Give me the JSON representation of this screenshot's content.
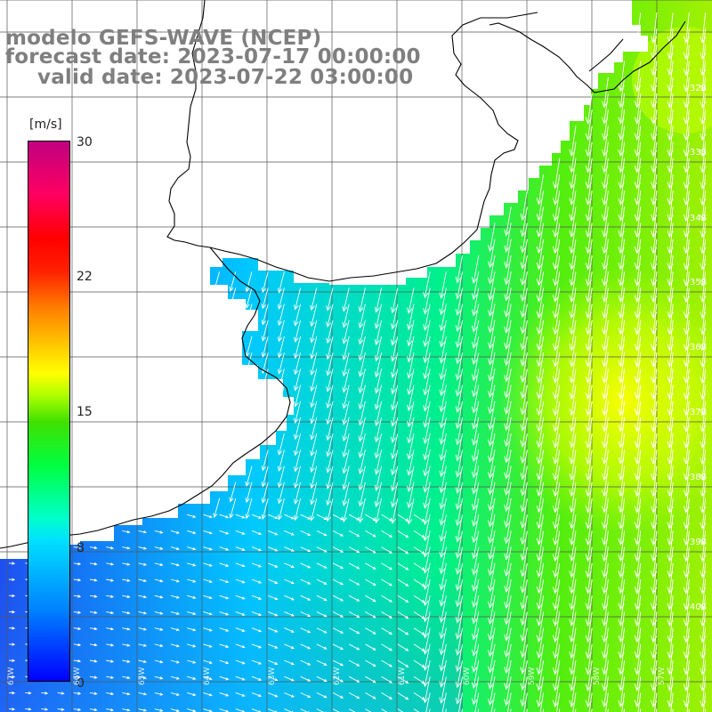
{
  "title": {
    "line1": "modelo GEFS-WAVE (NCEP)",
    "line2": "forecast date: 2023-07-17 00:00:00",
    "line3": "valid date: 2023-07-22 03:00:00"
  },
  "colorbar": {
    "unit": "[m/s]",
    "ticks": [
      "30",
      "22",
      "15",
      "8",
      "0"
    ],
    "colors": [
      "#0000ff",
      "#0080ff",
      "#00ffff",
      "#00ff40",
      "#b0ff00",
      "#ffff00",
      "#ff8000",
      "#ff0000",
      "#c00080"
    ]
  },
  "axes": {
    "lat_labels": [
      "32S",
      "33S",
      "34S",
      "35S",
      "36S",
      "37S",
      "38S",
      "39S",
      "40S"
    ],
    "lon_labels": [
      "67W",
      "66W",
      "65W",
      "64W",
      "63W",
      "62W",
      "61W",
      "60W",
      "59W",
      "58W",
      "57W"
    ]
  },
  "map": {
    "ocean_left_color": "#0a5cf0",
    "ocean_mid_color": "#00e6ff",
    "ocean_right_color": "#40ff20",
    "hot_spot_color": "#ffff00",
    "land_color": "#ffffff",
    "grid_color": "#555555",
    "coastline_color": "#000000",
    "arrow_color": "#ffffff"
  }
}
